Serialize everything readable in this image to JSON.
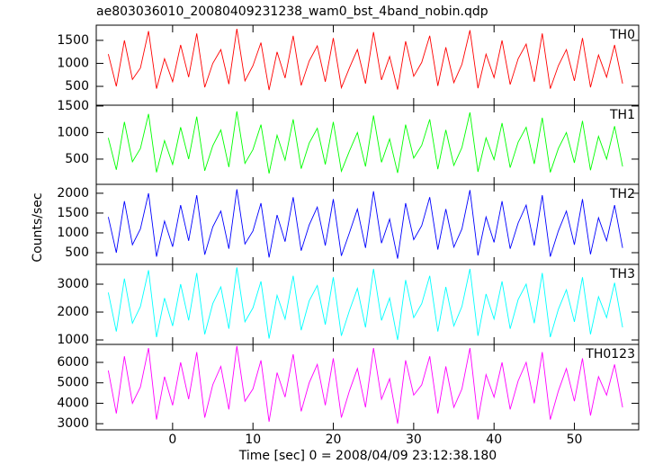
{
  "chart_data": {
    "type": "line",
    "title": "ae803036010_20080409231238_wam0_bst_4band_nobin.qdp",
    "xlabel": "Time [sec] 0 = 2008/04/09 23:12:38.180",
    "ylabel": "Counts/sec",
    "xlim": [
      -9.5,
      58
    ],
    "xticks": [
      0,
      10,
      20,
      30,
      40,
      50
    ],
    "x": [
      -8,
      -7,
      -6,
      -5,
      -4,
      -3,
      -2,
      -1,
      0,
      1,
      2,
      3,
      4,
      5,
      6,
      7,
      8,
      9,
      10,
      11,
      12,
      13,
      14,
      15,
      16,
      17,
      18,
      19,
      20,
      21,
      22,
      23,
      24,
      25,
      26,
      27,
      28,
      29,
      30,
      31,
      32,
      33,
      34,
      35,
      36,
      37,
      38,
      39,
      40,
      41,
      42,
      43,
      44,
      45,
      46,
      47,
      48,
      49,
      50,
      51,
      52,
      53,
      54,
      55,
      56
    ],
    "series": [
      {
        "name": "TH0",
        "color": "#ff0000",
        "ylim": [
          90,
          1830
        ],
        "yticks": [
          500,
          1000,
          1500
        ],
        "values": [
          1200,
          500,
          1500,
          650,
          900,
          1700,
          450,
          1100,
          600,
          1400,
          700,
          1650,
          480,
          1000,
          1300,
          550,
          1750,
          620,
          950,
          1450,
          420,
          1250,
          680,
          1600,
          520,
          1050,
          1380,
          600,
          1550,
          470,
          900,
          1300,
          560,
          1680,
          640,
          1150,
          430,
          1480,
          720,
          1020,
          1600,
          510,
          1350,
          580,
          980,
          1720,
          460,
          1200,
          690,
          1500,
          540,
          1100,
          1420,
          600,
          1650,
          450,
          950,
          1300,
          620,
          1550,
          480,
          1180,
          700,
          1400,
          560
        ]
      },
      {
        "name": "TH1",
        "color": "#00ff00",
        "ylim": [
          25,
          1515
        ],
        "yticks": [
          500,
          1000,
          1500
        ],
        "values": [
          900,
          300,
          1200,
          450,
          700,
          1350,
          250,
          850,
          400,
          1100,
          500,
          1300,
          280,
          750,
          1050,
          350,
          1400,
          420,
          680,
          1150,
          230,
          950,
          480,
          1250,
          320,
          800,
          1080,
          400,
          1200,
          270,
          650,
          1000,
          360,
          1320,
          440,
          880,
          240,
          1150,
          520,
          760,
          1250,
          310,
          1050,
          380,
          720,
          1380,
          260,
          900,
          490,
          1180,
          340,
          820,
          1100,
          410,
          1280,
          250,
          700,
          1000,
          430,
          1220,
          290,
          930,
          500,
          1120,
          360
        ]
      },
      {
        "name": "TH2",
        "color": "#0000ff",
        "ylim": [
          205,
          2225
        ],
        "yticks": [
          500,
          1000,
          1500,
          2000
        ],
        "values": [
          1400,
          500,
          1800,
          700,
          1100,
          2000,
          400,
          1300,
          650,
          1700,
          800,
          1950,
          450,
          1150,
          1550,
          600,
          2100,
          720,
          1050,
          1750,
          380,
          1450,
          780,
          1900,
          550,
          1200,
          1650,
          680,
          1850,
          420,
          1000,
          1600,
          620,
          2050,
          740,
          1350,
          350,
          1750,
          830,
          1180,
          1900,
          580,
          1600,
          640,
          1100,
          2080,
          430,
          1400,
          760,
          1800,
          600,
          1250,
          1700,
          680,
          1950,
          400,
          1050,
          1550,
          700,
          1850,
          460,
          1380,
          800,
          1700,
          620
        ]
      },
      {
        "name": "TH3",
        "color": "#00ffff",
        "ylim": [
          840,
          3710
        ],
        "yticks": [
          1000,
          2000,
          3000
        ],
        "values": [
          2700,
          1300,
          3200,
          1600,
          2200,
          3500,
          1100,
          2500,
          1500,
          3000,
          1700,
          3400,
          1200,
          2300,
          2900,
          1400,
          3600,
          1650,
          2150,
          3100,
          1050,
          2600,
          1750,
          3300,
          1350,
          2400,
          2950,
          1550,
          3250,
          1150,
          2050,
          2850,
          1450,
          3550,
          1700,
          2500,
          1000,
          3150,
          1800,
          2300,
          3300,
          1300,
          2900,
          1500,
          2200,
          3550,
          1150,
          2650,
          1750,
          3100,
          1400,
          2450,
          3000,
          1600,
          3400,
          1100,
          2100,
          2800,
          1650,
          3250,
          1200,
          2550,
          1800,
          3050,
          1450
        ]
      },
      {
        "name": "TH0123",
        "color": "#ff00ff",
        "ylim": [
          2700,
          6880
        ],
        "yticks": [
          3000,
          4000,
          5000,
          6000
        ],
        "values": [
          5600,
          3500,
          6300,
          4000,
          4800,
          6700,
          3200,
          5300,
          3900,
          6000,
          4200,
          6500,
          3300,
          4900,
          5800,
          3700,
          6800,
          4100,
          4700,
          6100,
          3100,
          5500,
          4300,
          6400,
          3600,
          5000,
          5900,
          3900,
          6200,
          3300,
          4600,
          5700,
          3800,
          6700,
          4200,
          5200,
          3000,
          6100,
          4400,
          4900,
          6300,
          3500,
          5800,
          3800,
          4700,
          6700,
          3200,
          5400,
          4300,
          6000,
          3700,
          5100,
          6000,
          4000,
          6500,
          3200,
          4600,
          5700,
          4100,
          6200,
          3400,
          5300,
          4400,
          5900,
          3800
        ]
      }
    ]
  }
}
